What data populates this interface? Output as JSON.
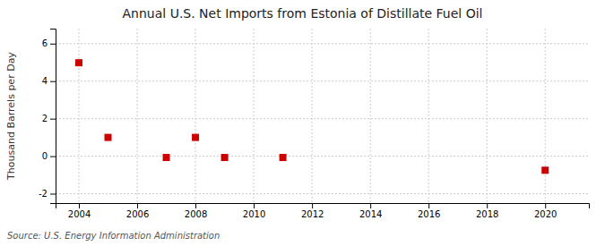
{
  "chart_data": {
    "type": "scatter",
    "title": "Annual U.S. Net Imports from Estonia of Distillate Fuel Oil",
    "ylabel": "Thousand Barrels per Day",
    "annotations": [
      "Source: U.S. Energy Information Administration"
    ],
    "x": [
      2004,
      2005,
      2007,
      2008,
      2009,
      2011,
      2020
    ],
    "values": [
      4.98,
      1.0,
      -0.07,
      1.0,
      -0.07,
      -0.07,
      -0.75
    ],
    "color": "#cc0000",
    "marker": "square",
    "xlim": [
      2003.2,
      2021.5
    ],
    "ylim": [
      -2.5,
      6.8
    ],
    "xticks": [
      2004,
      2006,
      2008,
      2010,
      2012,
      2014,
      2016,
      2018,
      2020
    ],
    "yticks": [
      -2,
      0,
      2,
      4,
      6
    ],
    "grid": true
  }
}
